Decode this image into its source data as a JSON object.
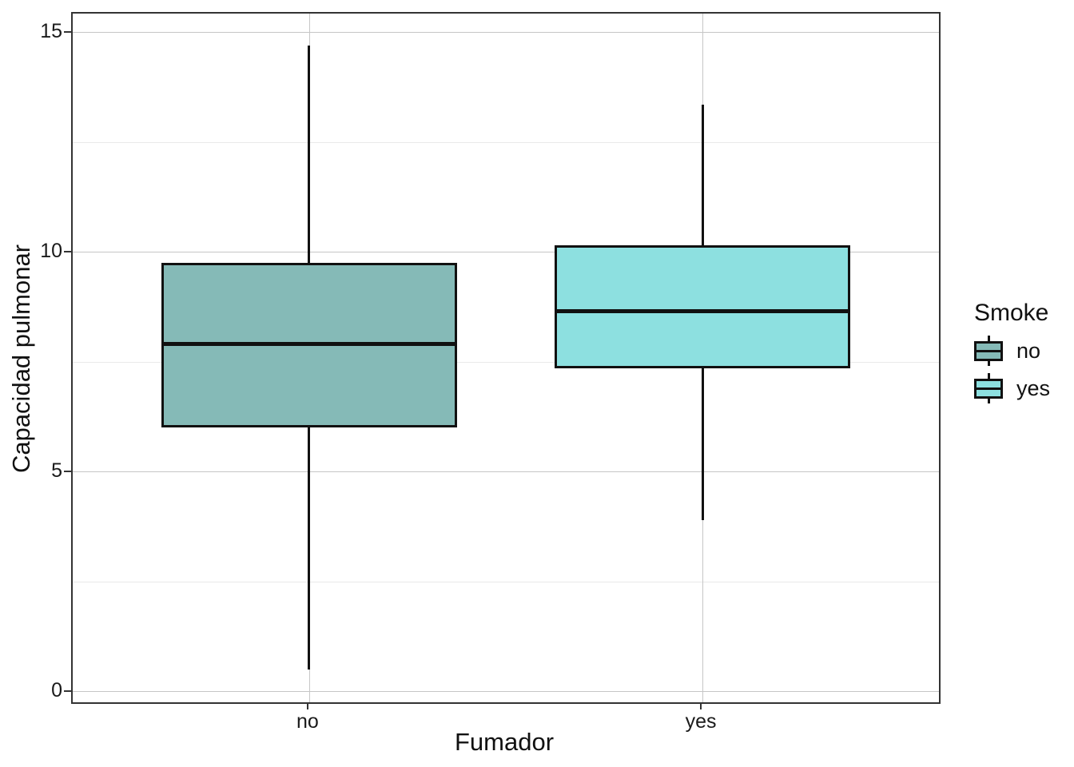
{
  "chart_data": {
    "type": "boxplot",
    "title": "",
    "xlabel": "Fumador",
    "ylabel": "Capacidad pulmonar",
    "categories": [
      "no",
      "yes"
    ],
    "ylim": [
      0,
      15
    ],
    "y_ticks": [
      0,
      5,
      10,
      15
    ],
    "y_minor_ticks": [
      2.5,
      7.5,
      12.5
    ],
    "grid": true,
    "legend_position": "right",
    "series": [
      {
        "name": "no",
        "fill": "#85BAB7",
        "min": 0.5,
        "q1": 6.0,
        "median": 7.9,
        "q3": 9.75,
        "max": 14.7
      },
      {
        "name": "yes",
        "fill": "#8DE0E0",
        "min": 3.9,
        "q1": 7.35,
        "median": 8.65,
        "q3": 10.15,
        "max": 13.35
      }
    ],
    "legend": {
      "title": "Smoke",
      "entries": [
        {
          "label": "no",
          "fill": "#85BAB7"
        },
        {
          "label": "yes",
          "fill": "#8DE0E0"
        }
      ]
    }
  },
  "colors": {
    "box_border": "#111111",
    "panel_border": "#333333",
    "grid_major": "#c6c6c6",
    "grid_minor": "#e9e9e9",
    "background": "#ffffff"
  }
}
